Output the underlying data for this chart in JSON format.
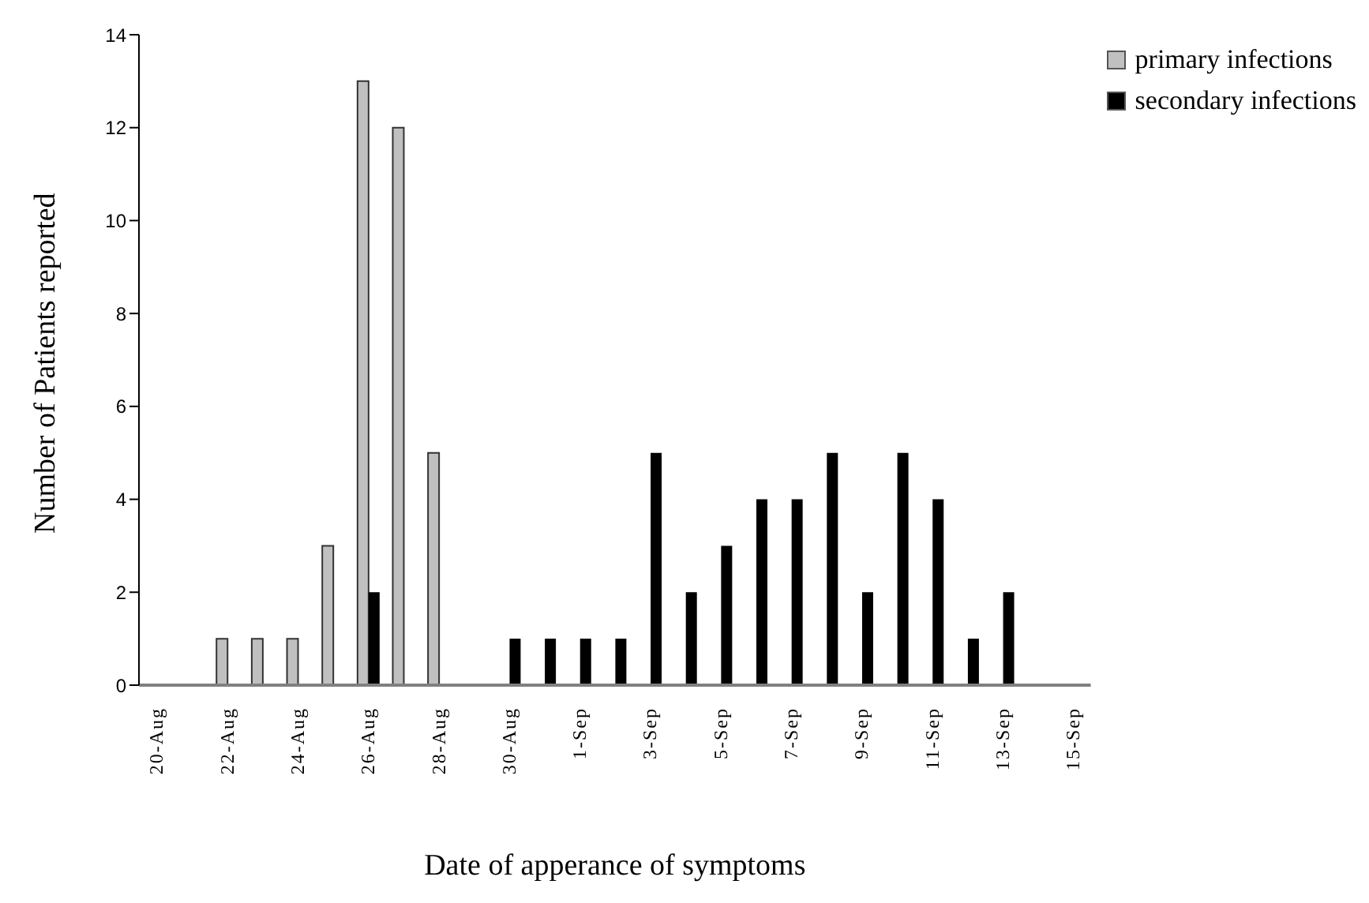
{
  "chart_data": {
    "type": "bar",
    "xlabel": "Date of apperance of symptoms",
    "ylabel": "Number of Patients reported",
    "categories": [
      "20-Aug",
      null,
      "22-Aug",
      null,
      "24-Aug",
      null,
      "26-Aug",
      null,
      "28-Aug",
      null,
      "30-Aug",
      null,
      "1-Sep",
      null,
      "3-Sep",
      null,
      "5-Sep",
      null,
      "7-Sep",
      null,
      "9-Sep",
      null,
      "11-Sep",
      null,
      "13-Sep",
      null,
      "15-Sep"
    ],
    "series": [
      {
        "name": "primary infections",
        "color": "#c0c0c0",
        "values": [
          0,
          0,
          1,
          1,
          1,
          3,
          13,
          12,
          5,
          0,
          0,
          0,
          0,
          0,
          0,
          0,
          0,
          0,
          0,
          0,
          0,
          0,
          0,
          0,
          0,
          0,
          0
        ]
      },
      {
        "name": "secondary infections",
        "color": "#000000",
        "values": [
          0,
          0,
          0,
          0,
          0,
          0,
          2,
          0,
          0,
          0,
          1,
          1,
          1,
          1,
          5,
          2,
          3,
          4,
          4,
          5,
          2,
          5,
          4,
          1,
          2,
          0,
          0
        ]
      }
    ],
    "ylim": [
      0,
      14
    ],
    "yticks": [
      0,
      2,
      4,
      6,
      8,
      10,
      12,
      14
    ],
    "grid": false,
    "legend": "top right"
  }
}
